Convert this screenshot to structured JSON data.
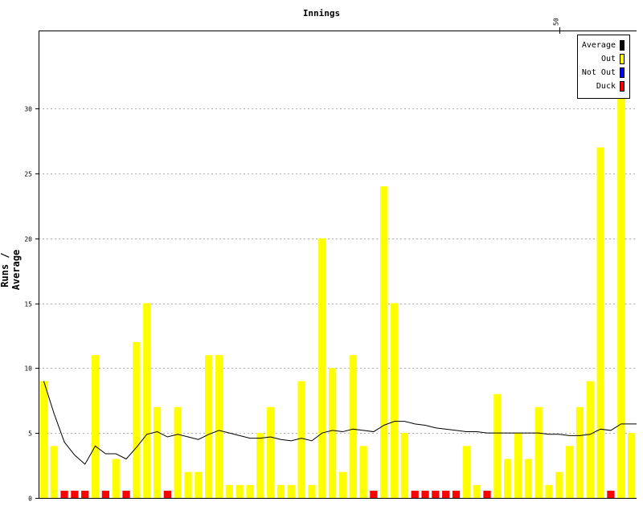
{
  "chart_data": {
    "type": "bar",
    "title": "Innings",
    "ylabel": "Runs / Average",
    "ylim": [
      0,
      36
    ],
    "yticks": [
      0,
      5,
      10,
      15,
      20,
      25,
      30
    ],
    "top_ticks": [
      50
    ],
    "grid": true,
    "legend_position": "top-right",
    "legend": [
      {
        "name": "Average",
        "color": "#000000"
      },
      {
        "name": "Out",
        "color": "#ffff00"
      },
      {
        "name": "Not Out",
        "color": "#0000ff"
      },
      {
        "name": "Duck",
        "color": "#ff0000"
      }
    ],
    "innings": [
      {
        "runs": 9,
        "status": "out"
      },
      {
        "runs": 4,
        "status": "out"
      },
      {
        "runs": 0,
        "status": "duck"
      },
      {
        "runs": 0,
        "status": "duck"
      },
      {
        "runs": 0,
        "status": "duck"
      },
      {
        "runs": 11,
        "status": "out"
      },
      {
        "runs": 0,
        "status": "duck"
      },
      {
        "runs": 3,
        "status": "out"
      },
      {
        "runs": 0,
        "status": "duck"
      },
      {
        "runs": 12,
        "status": "out"
      },
      {
        "runs": 15,
        "status": "out"
      },
      {
        "runs": 7,
        "status": "out"
      },
      {
        "runs": 0,
        "status": "duck"
      },
      {
        "runs": 7,
        "status": "out"
      },
      {
        "runs": 2,
        "status": "out"
      },
      {
        "runs": 2,
        "status": "out"
      },
      {
        "runs": 11,
        "status": "out"
      },
      {
        "runs": 11,
        "status": "out"
      },
      {
        "runs": 1,
        "status": "out"
      },
      {
        "runs": 1,
        "status": "out"
      },
      {
        "runs": 1,
        "status": "out"
      },
      {
        "runs": 5,
        "status": "out"
      },
      {
        "runs": 7,
        "status": "out"
      },
      {
        "runs": 1,
        "status": "out"
      },
      {
        "runs": 1,
        "status": "out"
      },
      {
        "runs": 9,
        "status": "out"
      },
      {
        "runs": 1,
        "status": "out"
      },
      {
        "runs": 20,
        "status": "out"
      },
      {
        "runs": 10,
        "status": "out"
      },
      {
        "runs": 2,
        "status": "out"
      },
      {
        "runs": 11,
        "status": "out"
      },
      {
        "runs": 4,
        "status": "out"
      },
      {
        "runs": 0,
        "status": "duck"
      },
      {
        "runs": 24,
        "status": "out"
      },
      {
        "runs": 15,
        "status": "out"
      },
      {
        "runs": 5,
        "status": "out"
      },
      {
        "runs": 0,
        "status": "duck"
      },
      {
        "runs": 0,
        "status": "duck"
      },
      {
        "runs": 0,
        "status": "duck"
      },
      {
        "runs": 0,
        "status": "duck"
      },
      {
        "runs": 0,
        "status": "duck"
      },
      {
        "runs": 4,
        "status": "out"
      },
      {
        "runs": 1,
        "status": "out"
      },
      {
        "runs": 0,
        "status": "duck"
      },
      {
        "runs": 8,
        "status": "out"
      },
      {
        "runs": 3,
        "status": "out"
      },
      {
        "runs": 5,
        "status": "out"
      },
      {
        "runs": 3,
        "status": "out"
      },
      {
        "runs": 7,
        "status": "out"
      },
      {
        "runs": 1,
        "status": "out"
      },
      {
        "runs": 2,
        "status": "out"
      },
      {
        "runs": 4,
        "status": "out"
      },
      {
        "runs": 7,
        "status": "out"
      },
      {
        "runs": 9,
        "status": "out"
      },
      {
        "runs": 27,
        "status": "out"
      },
      {
        "runs": 0,
        "status": "duck"
      },
      {
        "runs": 31,
        "status": "out"
      },
      {
        "runs": 5,
        "status": "out"
      }
    ],
    "average": [
      9.0,
      6.5,
      4.3,
      3.3,
      2.6,
      4.0,
      3.4,
      3.4,
      3.0,
      3.9,
      4.9,
      5.1,
      4.7,
      4.9,
      4.7,
      4.5,
      4.9,
      5.2,
      5.0,
      4.8,
      4.6,
      4.6,
      4.7,
      4.5,
      4.4,
      4.6,
      4.4,
      5.0,
      5.2,
      5.1,
      5.3,
      5.2,
      5.1,
      5.6,
      5.9,
      5.9,
      5.7,
      5.6,
      5.4,
      5.3,
      5.2,
      5.1,
      5.1,
      5.0,
      5.0,
      5.0,
      5.0,
      5.0,
      5.0,
      4.9,
      4.9,
      4.8,
      4.8,
      4.9,
      5.3,
      5.2,
      5.7,
      5.7
    ]
  }
}
